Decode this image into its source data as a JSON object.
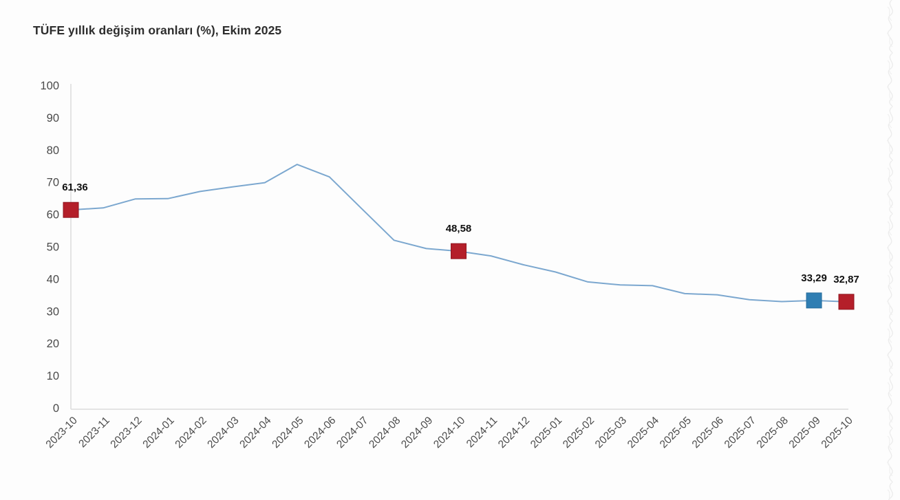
{
  "page": {
    "background": "#fdfdfd"
  },
  "chart_data": {
    "type": "line",
    "title": "TÜFE yıllık değişim oranları (%), Ekim 2025",
    "categories": [
      "2023-10",
      "2023-11",
      "2023-12",
      "2024-01",
      "2024-02",
      "2024-03",
      "2024-04",
      "2024-05",
      "2024-06",
      "2024-07",
      "2024-08",
      "2024-09",
      "2024-10",
      "2024-11",
      "2024-12",
      "2025-01",
      "2025-02",
      "2025-03",
      "2025-04",
      "2025-05",
      "2025-06",
      "2025-07",
      "2025-08",
      "2025-09",
      "2025-10"
    ],
    "values": [
      61.36,
      61.98,
      64.77,
      64.86,
      67.07,
      68.5,
      69.8,
      75.45,
      71.6,
      61.78,
      51.97,
      49.38,
      48.58,
      47.09,
      44.38,
      42.12,
      39.05,
      38.1,
      37.86,
      35.41,
      35.05,
      33.52,
      32.95,
      33.29,
      32.87
    ],
    "ylim": [
      0,
      100
    ],
    "ytick_step": 10,
    "ytick_labels": [
      "0",
      "10",
      "20",
      "30",
      "40",
      "50",
      "60",
      "70",
      "80",
      "90",
      "100"
    ],
    "xlabel": "",
    "ylabel": "",
    "grid": false,
    "legend": "none",
    "colors": {
      "line": "#7ba7cf",
      "axis": "#dcdcdc",
      "tick_text": "#4a4a4a",
      "value_label_text": "#111111",
      "marker_red_fill": "#b41f2a",
      "marker_red_stroke": "#8f1620",
      "marker_blue_fill": "#2f7eb3",
      "marker_blue_stroke": "#276d9c"
    },
    "highlight_markers": [
      {
        "category": "2023-10",
        "index": 0,
        "value_label": "61,36",
        "color": "red"
      },
      {
        "category": "2024-10",
        "index": 12,
        "value_label": "48,58",
        "color": "red"
      },
      {
        "category": "2025-09",
        "index": 23,
        "value_label": "33,29",
        "color": "blue"
      },
      {
        "category": "2025-10",
        "index": 24,
        "value_label": "32,87",
        "color": "red"
      }
    ]
  }
}
